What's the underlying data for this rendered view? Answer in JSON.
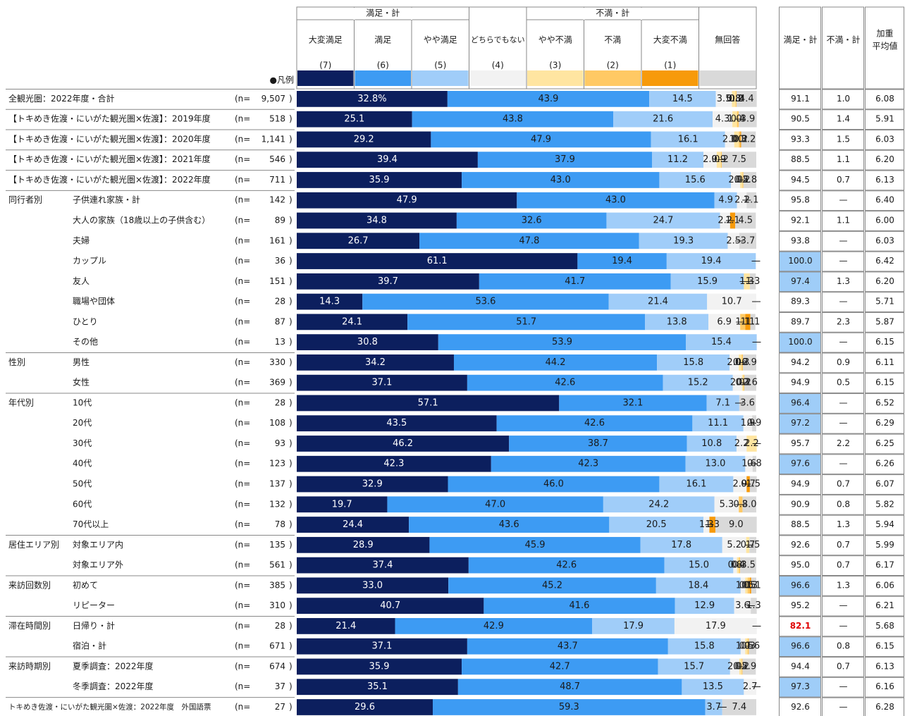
{
  "chart_data": {
    "type": "bar",
    "orientation": "horizontal",
    "stacked": true,
    "xlim": [
      0,
      100
    ],
    "header_groups": [
      "満足・計",
      "不満・計"
    ],
    "legend_label": "●凡例",
    "n_open": "(n=",
    "n_close": ")",
    "categories": [
      {
        "label": "全観光圏：2022年度・合計",
        "n": "9,507"
      },
      {
        "label": "【トキめき佐渡・にいがた観光圏×佐渡】：2019年度",
        "n": "518"
      },
      {
        "label": "【トキめき佐渡・にいがた観光圏×佐渡】：2020年度",
        "n": "1,141"
      },
      {
        "label": "【トキめき佐渡・にいがた観光圏×佐渡】：2021年度",
        "n": "546"
      },
      {
        "label": "【トキめき佐渡・にいがた観光圏×佐渡】：2022年度",
        "n": "711"
      },
      {
        "group": "同行者別",
        "label": "子供連れ家族・計",
        "n": "142"
      },
      {
        "sub": true,
        "label": "大人の家族（18歳以上の子供含む）",
        "n": "89"
      },
      {
        "sub": true,
        "label": "夫婦",
        "n": "161"
      },
      {
        "sub": true,
        "label": "カップル",
        "n": "36"
      },
      {
        "sub": true,
        "label": "友人",
        "n": "151"
      },
      {
        "sub": true,
        "label": "職場や団体",
        "n": "28"
      },
      {
        "sub": true,
        "label": "ひとり",
        "n": "87"
      },
      {
        "sub": true,
        "label": "その他",
        "n": "13"
      },
      {
        "group": "性別",
        "label": "男性",
        "n": "330"
      },
      {
        "sub": true,
        "label": "女性",
        "n": "369"
      },
      {
        "group": "年代別",
        "label": "10代",
        "n": "28"
      },
      {
        "sub": true,
        "label": "20代",
        "n": "108"
      },
      {
        "sub": true,
        "label": "30代",
        "n": "93"
      },
      {
        "sub": true,
        "label": "40代",
        "n": "123"
      },
      {
        "sub": true,
        "label": "50代",
        "n": "137"
      },
      {
        "sub": true,
        "label": "60代",
        "n": "132"
      },
      {
        "sub": true,
        "label": "70代以上",
        "n": "78"
      },
      {
        "group": "居住エリア別",
        "label": "対象エリア内",
        "n": "135"
      },
      {
        "sub": true,
        "label": "対象エリア外",
        "n": "561"
      },
      {
        "group": "来訪回数別",
        "label": "初めて",
        "n": "385"
      },
      {
        "sub": true,
        "label": "リピーター",
        "n": "310"
      },
      {
        "group": "滞在時間別",
        "label": "日帰り・計",
        "n": "28"
      },
      {
        "sub": true,
        "label": "宿泊・計",
        "n": "671"
      },
      {
        "group": "来訪時期別",
        "label": "夏季調査：2022年度",
        "n": "674"
      },
      {
        "sub": true,
        "label": "冬季調査：2022年度",
        "n": "37"
      },
      {
        "label": "トキめき佐渡・にいがた観光圏×佐渡：2022年度　外国語票",
        "n": "27"
      }
    ],
    "series": [
      {
        "name": "大変満足",
        "code": "(7)",
        "color": "#0c1f5e",
        "label_color": "#ffffff",
        "values": [
          32.8,
          25.1,
          29.2,
          39.4,
          35.9,
          47.9,
          34.8,
          26.7,
          61.1,
          39.7,
          14.3,
          24.1,
          30.8,
          34.2,
          37.1,
          57.1,
          43.5,
          46.2,
          42.3,
          32.9,
          19.7,
          24.4,
          28.9,
          37.4,
          33.0,
          40.7,
          21.4,
          37.1,
          35.9,
          35.1,
          29.6
        ],
        "value_labels": [
          "32.8%",
          "25.1",
          "29.2",
          "39.4",
          "35.9",
          "47.9",
          "34.8",
          "26.7",
          "61.1",
          "39.7",
          "14.3",
          "24.1",
          "30.8",
          "34.2",
          "37.1",
          "57.1",
          "43.5",
          "46.2",
          "42.3",
          "32.9",
          "19.7",
          "24.4",
          "28.9",
          "37.4",
          "33.0",
          "40.7",
          "21.4",
          "37.1",
          "35.9",
          "35.1",
          "29.6"
        ]
      },
      {
        "name": "満足",
        "code": "(6)",
        "color": "#3d9bf3",
        "label_color": "#1a1a1a",
        "values": [
          43.9,
          43.8,
          47.9,
          37.9,
          43.0,
          43.0,
          32.6,
          47.8,
          19.4,
          41.7,
          53.6,
          51.7,
          53.9,
          44.2,
          42.6,
          32.1,
          42.6,
          38.7,
          42.3,
          46.0,
          47.0,
          43.6,
          45.9,
          42.6,
          45.2,
          41.6,
          42.9,
          43.7,
          42.7,
          48.7,
          59.3
        ],
        "value_labels": [
          "43.9",
          "43.8",
          "47.9",
          "37.9",
          "43.0",
          "43.0",
          "32.6",
          "47.8",
          "19.4",
          "41.7",
          "53.6",
          "51.7",
          "53.9",
          "44.2",
          "42.6",
          "32.1",
          "42.6",
          "38.7",
          "42.3",
          "46.0",
          "47.0",
          "43.6",
          "45.9",
          "42.6",
          "45.2",
          "41.6",
          "42.9",
          "43.7",
          "42.7",
          "48.7",
          "59.3"
        ]
      },
      {
        "name": "やや満足",
        "code": "(5)",
        "color": "#a0cdf9",
        "label_color": "#1a1a1a",
        "values": [
          14.5,
          21.6,
          16.1,
          11.2,
          15.6,
          4.9,
          24.7,
          19.3,
          19.4,
          15.9,
          21.4,
          13.8,
          15.4,
          15.8,
          15.2,
          7.1,
          11.1,
          10.8,
          13.0,
          16.1,
          24.2,
          20.5,
          17.8,
          15.0,
          18.4,
          12.9,
          17.9,
          15.8,
          15.7,
          13.5,
          3.7
        ],
        "value_labels": [
          "14.5",
          "21.6",
          "16.1",
          "11.2",
          "15.6",
          "4.9",
          "24.7",
          "19.3",
          "19.4",
          "15.9",
          "21.4",
          "13.8",
          "15.4",
          "15.8",
          "15.2",
          "7.1",
          "11.1",
          "10.8",
          "13.0",
          "16.1",
          "24.2",
          "20.5",
          "17.8",
          "15.0",
          "18.4",
          "12.9",
          "17.9",
          "15.8",
          "15.7",
          "13.5",
          "3.7"
        ]
      },
      {
        "name": "どちらでもない",
        "code": "(4)",
        "color": "#f2f2f2",
        "label_color": "#1a1a1a",
        "values": [
          3.5,
          4.3,
          2.0,
          2.9,
          2.0,
          2.1,
          2.2,
          2.5,
          0,
          0,
          10.7,
          6.9,
          0,
          2.0,
          2.0,
          0,
          1.9,
          2.2,
          1.6,
          2.9,
          5.3,
          1.3,
          5.2,
          0.8,
          1.0,
          3.6,
          17.9,
          1.0,
          2.0,
          2.7,
          0
        ],
        "value_labels": [
          "3.5",
          "4.3",
          "2.0",
          "2.9",
          "2.0",
          "2.1",
          "2.2",
          "2.5",
          "—",
          "—",
          "10.7",
          "6.9",
          "—",
          "2.0",
          "2.0",
          "—",
          "1.9",
          "2.2",
          "1.6",
          "2.9",
          "5.3",
          "1.3",
          "5.2",
          "0.8",
          "1.0",
          "3.6",
          "17.9",
          "1.0",
          "2.0",
          "2.7",
          "—"
        ]
      },
      {
        "name": "やや不満",
        "code": "(3)",
        "color": "#ffe5a1",
        "label_color": "#1a1a1a",
        "values": [
          0.8,
          1.0,
          1.0,
          0.9,
          0.5,
          0,
          0,
          0,
          0,
          1.3,
          0,
          0,
          0,
          0.6,
          0.3,
          0,
          0,
          2.2,
          0,
          0,
          0,
          0,
          0.7,
          0.4,
          0.5,
          0,
          0,
          0.5,
          0.5,
          0,
          0
        ],
        "value_labels": [
          "0.8",
          "1.0",
          "1.0",
          "0.9",
          "0.5",
          "—",
          "—",
          "—",
          "—",
          "1.3",
          "—",
          "—",
          "—",
          "0.6",
          "0.3",
          "—",
          "—",
          "2.2",
          "—",
          "—",
          "—",
          "—",
          "0.7",
          "0.4",
          "0.5",
          "—",
          "—",
          "0.5",
          "0.5",
          "—",
          "—"
        ]
      },
      {
        "name": "不満",
        "code": "(2)",
        "color": "#ffc964",
        "label_color": "#1a1a1a",
        "values": [
          0.2,
          0.4,
          0.3,
          0.2,
          0.2,
          0,
          0,
          0,
          0,
          0,
          0,
          1.1,
          0,
          0.3,
          0.2,
          0,
          0,
          0,
          0,
          0,
          0.8,
          0,
          0,
          0.3,
          0.5,
          0,
          0,
          0.3,
          0.2,
          0,
          0
        ],
        "value_labels": [
          "0.2",
          "0.4",
          "0.3",
          "0.2",
          "0.2",
          "—",
          "—",
          "—",
          "—",
          "—",
          "—",
          "1.1",
          "—",
          "0.3",
          "0.2",
          "—",
          "—",
          "—",
          "—",
          "—",
          "0.8",
          "—",
          "—",
          "0.3",
          "0.5",
          "—",
          "—",
          "0.3",
          "0.2",
          "—",
          "—"
        ]
      },
      {
        "name": "大変不満",
        "code": "(1)",
        "color": "#f79a0a",
        "label_color": "#1a1a1a",
        "values": [
          0.0,
          0,
          0.2,
          0,
          0,
          0,
          1.1,
          0,
          0,
          0,
          0,
          1.1,
          0,
          0,
          0,
          0,
          0,
          0,
          0,
          0.7,
          0,
          1.3,
          0,
          0,
          0.3,
          0,
          0,
          0,
          0,
          0,
          0
        ],
        "value_labels": [
          "0.0",
          "—",
          "0.2",
          "—",
          "—",
          "—",
          "1.1",
          "—",
          "—",
          "—",
          "—",
          "1.1",
          "—",
          "—",
          "—",
          "—",
          "—",
          "—",
          "—",
          "0.7",
          "—",
          "1.3",
          "—",
          "—",
          "0.3",
          "—",
          "—",
          "—",
          "—",
          "—",
          "—"
        ]
      },
      {
        "name": "無回答",
        "color": "#d9d9d9",
        "label_color": "#1a1a1a",
        "values": [
          4.4,
          3.9,
          3.2,
          7.5,
          2.8,
          2.1,
          4.5,
          3.7,
          0,
          1.3,
          0,
          1.1,
          0,
          2.9,
          2.6,
          3.6,
          0.9,
          0,
          0.8,
          1.5,
          3.0,
          9.0,
          1.5,
          3.5,
          1.1,
          1.3,
          0,
          1.6,
          2.9,
          0,
          7.4
        ],
        "value_labels": [
          "4.4",
          "3.9",
          "3.2",
          "7.5",
          "2.8",
          "2.1",
          "4.5",
          "3.7",
          "—",
          "1.3",
          "—",
          "1.1",
          "—",
          "2.9",
          "2.6",
          "3.6",
          "0.9",
          "—",
          "0.8",
          "1.5",
          "3.0",
          "9.0",
          "1.5",
          "3.5",
          "1.1",
          "1.3",
          "—",
          "1.6",
          "2.9",
          "—",
          "7.4"
        ]
      }
    ],
    "table": {
      "columns": [
        [
          "満足・計"
        ],
        [
          "不満・計"
        ],
        [
          "加重",
          "平均値"
        ]
      ],
      "rows": [
        [
          "91.1",
          "1.0",
          "6.08"
        ],
        [
          "90.5",
          "1.4",
          "5.91"
        ],
        [
          "93.3",
          "1.5",
          "6.03"
        ],
        [
          "88.5",
          "1.1",
          "6.20"
        ],
        [
          "94.5",
          "0.7",
          "6.13"
        ],
        [
          "95.8",
          "—",
          "6.40"
        ],
        [
          "92.1",
          "1.1",
          "6.00"
        ],
        [
          "93.8",
          "—",
          "6.03"
        ],
        [
          "100.0",
          "—",
          "6.42"
        ],
        [
          "97.4",
          "1.3",
          "6.20"
        ],
        [
          "89.3",
          "—",
          "5.71"
        ],
        [
          "89.7",
          "2.3",
          "5.87"
        ],
        [
          "100.0",
          "—",
          "6.15"
        ],
        [
          "94.2",
          "0.9",
          "6.11"
        ],
        [
          "94.9",
          "0.5",
          "6.15"
        ],
        [
          "96.4",
          "—",
          "6.52"
        ],
        [
          "97.2",
          "—",
          "6.29"
        ],
        [
          "95.7",
          "2.2",
          "6.25"
        ],
        [
          "97.6",
          "—",
          "6.26"
        ],
        [
          "94.9",
          "0.7",
          "6.07"
        ],
        [
          "90.9",
          "0.8",
          "5.82"
        ],
        [
          "88.5",
          "1.3",
          "5.94"
        ],
        [
          "92.6",
          "0.7",
          "5.99"
        ],
        [
          "95.0",
          "0.7",
          "6.17"
        ],
        [
          "96.6",
          "1.3",
          "6.06"
        ],
        [
          "95.2",
          "—",
          "6.21"
        ],
        [
          "82.1",
          "—",
          "5.68"
        ],
        [
          "96.6",
          "0.8",
          "6.15"
        ],
        [
          "94.4",
          "0.7",
          "6.13"
        ],
        [
          "97.3",
          "—",
          "6.16"
        ],
        [
          "92.6",
          "—",
          "6.28"
        ]
      ],
      "highlight": [
        8,
        9,
        12,
        15,
        16,
        18,
        24,
        27,
        29
      ],
      "highlight_color": "#9fcdf8",
      "alert": [
        26
      ],
      "alert_color": "#e00000"
    }
  }
}
